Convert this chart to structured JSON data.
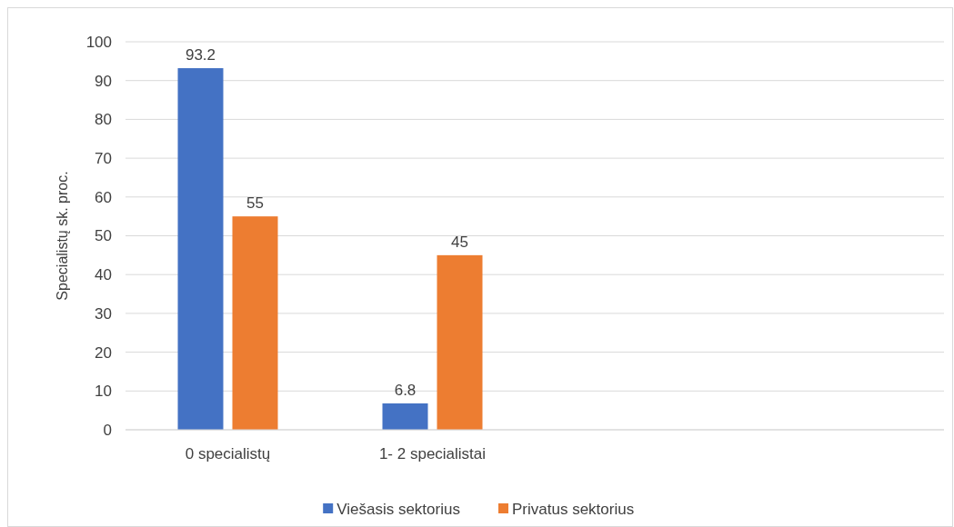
{
  "chart_data": {
    "type": "bar",
    "ylabel": "Specialistų sk. proc.",
    "categories": [
      "0 specialistų",
      "1- 2 specialistai",
      null,
      null
    ],
    "series": [
      {
        "name": "Viešasis sektorius",
        "color": "#4472c4",
        "values": [
          93.2,
          6.8,
          null,
          null
        ]
      },
      {
        "name": "Privatus sektorius",
        "color": "#ed7d31",
        "values": [
          55,
          45,
          null,
          null
        ]
      }
    ],
    "ylim": [
      0,
      100
    ],
    "yticks": [
      0,
      10,
      20,
      30,
      40,
      50,
      60,
      70,
      80,
      90,
      100
    ],
    "grid": "y",
    "legend": "bottom",
    "data_labels": true
  }
}
